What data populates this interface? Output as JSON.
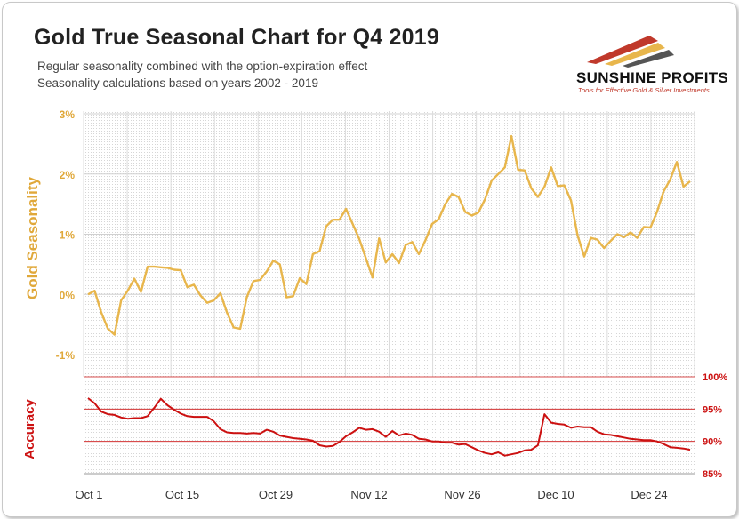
{
  "header": {
    "title": "Gold True Seasonal Chart for Q4 2019",
    "subtitle1": "Regular seasonality combined with the option-expiration effect",
    "subtitle2": "Seasonality calculations based on years 2002 - 2019"
  },
  "logo": {
    "name": "SUNSHINE PROFITS",
    "tagline": "Tools for Effective Gold & Silver Investments"
  },
  "colors": {
    "gold_line": "#e8b64c",
    "accuracy_line": "#cc1111",
    "gold_axis_text": "#e0a83a",
    "accuracy_axis_text": "#cc1111"
  },
  "chart_data": [
    {
      "type": "line",
      "ylabel": "Gold Seasonality",
      "ylim": [
        -1.4,
        3.0
      ],
      "yticks": [
        "3%",
        "2%",
        "1%",
        "0%",
        "-1%"
      ],
      "ytick_values": [
        3,
        2,
        1,
        0,
        -1
      ],
      "grid": true,
      "series": [
        {
          "values": [
            0.0,
            0.06,
            -0.3,
            -0.57,
            -0.67,
            -0.1,
            0.06,
            0.26,
            0.04,
            0.46,
            0.46,
            0.45,
            0.44,
            0.41,
            0.4,
            0.12,
            0.16,
            -0.02,
            -0.14,
            -0.1,
            0.02,
            -0.3,
            -0.55,
            -0.57,
            -0.05,
            0.22,
            0.24,
            0.38,
            0.56,
            0.5,
            -0.05,
            -0.03,
            0.27,
            0.17,
            0.67,
            0.72,
            1.13,
            1.24,
            1.24,
            1.42,
            1.17,
            0.92,
            0.6,
            0.28,
            0.93,
            0.53,
            0.67,
            0.52,
            0.82,
            0.87,
            0.67,
            0.9,
            1.17,
            1.25,
            1.5,
            1.67,
            1.62,
            1.37,
            1.31,
            1.36,
            1.58,
            1.89,
            2.0,
            2.11,
            2.63,
            2.07,
            2.06,
            1.76,
            1.62,
            1.79,
            2.11,
            1.8,
            1.81,
            1.56,
            0.98,
            0.63,
            0.94,
            0.91,
            0.77,
            0.89,
            1.0,
            0.95,
            1.03,
            0.94,
            1.12,
            1.11,
            1.37,
            1.71,
            1.91,
            2.2,
            1.79,
            1.88
          ]
        }
      ]
    },
    {
      "type": "line",
      "ylabel": "Accuracy",
      "ylim": [
        85,
        100
      ],
      "yticks": [
        "100%",
        "95%",
        "90%",
        "85%"
      ],
      "ytick_values": [
        100,
        95,
        90,
        85
      ],
      "grid": true,
      "x_tick_labels": [
        "Oct 1",
        "Oct 15",
        "Oct 29",
        "Nov 12",
        "Nov 26",
        "Dec 10",
        "Dec 24"
      ],
      "series": [
        {
          "values": [
            96.7,
            95.9,
            94.6,
            94.2,
            94.1,
            93.7,
            93.5,
            93.6,
            93.6,
            93.9,
            95.2,
            96.6,
            95.6,
            94.9,
            94.3,
            93.9,
            93.8,
            93.8,
            93.8,
            93.1,
            91.9,
            91.4,
            91.3,
            91.3,
            91.2,
            91.3,
            91.2,
            91.8,
            91.5,
            90.9,
            90.7,
            90.5,
            90.4,
            90.3,
            90.1,
            89.4,
            89.2,
            89.3,
            89.9,
            90.8,
            91.4,
            92.1,
            91.8,
            91.9,
            91.5,
            90.7,
            91.6,
            90.9,
            91.2,
            91.0,
            90.4,
            90.3,
            90.0,
            90.0,
            89.8,
            89.8,
            89.5,
            89.6,
            89.1,
            88.6,
            88.2,
            88.0,
            88.3,
            87.8,
            88.0,
            88.2,
            88.6,
            88.7,
            89.4,
            94.2,
            92.9,
            92.7,
            92.6,
            92.1,
            92.3,
            92.2,
            92.2,
            91.5,
            91.1,
            91.0,
            90.8,
            90.6,
            90.4,
            90.3,
            90.2,
            90.2,
            90.0,
            89.6,
            89.1,
            89.0,
            88.9,
            88.7
          ]
        }
      ]
    }
  ]
}
